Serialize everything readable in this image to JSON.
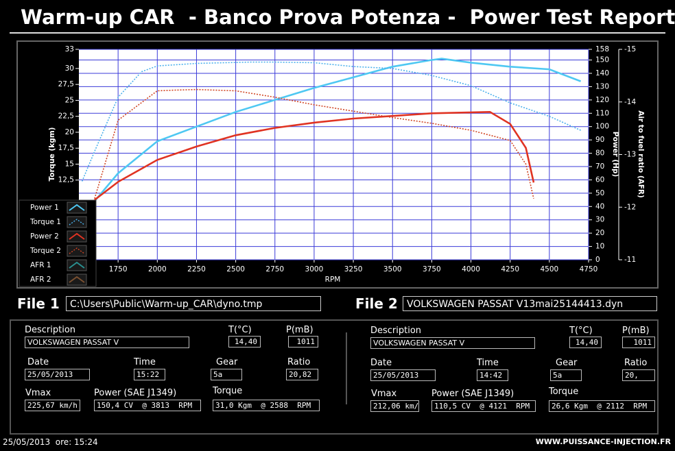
{
  "header": {
    "title": "Warm-up CAR  - Banco Prova Potenza -  Power Test Report"
  },
  "chart_data": {
    "type": "line",
    "xlabel": "RPM",
    "ylabel": "Torque (kgm)",
    "y2label": "Power (Hp)",
    "y3label": "Air to fuel ratio (AFR)",
    "xlim": [
      1500,
      4750
    ],
    "xticks": [
      1750,
      2000,
      2250,
      2500,
      2750,
      3000,
      3250,
      3500,
      3750,
      4000,
      4250,
      4500,
      4750
    ],
    "ylim": [
      0,
      33
    ],
    "yticks": [
      {
        "value": 12.5,
        "label": "12,5"
      },
      15,
      {
        "value": 17.5,
        "label": "17,5"
      },
      20,
      {
        "value": 22.5,
        "label": "22,5"
      },
      25,
      {
        "value": 27.5,
        "label": "27,5"
      },
      30,
      33
    ],
    "y2lim": [
      0,
      158
    ],
    "y2ticks": [
      0,
      10,
      20,
      30,
      40,
      50,
      60,
      70,
      80,
      90,
      100,
      110,
      120,
      130,
      140,
      150,
      158
    ],
    "y3lim": [
      -11,
      -15
    ],
    "y3ticks": [
      -15,
      -14,
      -13,
      -12,
      -11
    ],
    "grid": true,
    "series": [
      {
        "name": "Power 1",
        "color": "#4ec8f2",
        "axis": "y2",
        "style": "solid",
        "x": [
          1600,
          1750,
          2000,
          2250,
          2500,
          2750,
          3000,
          3250,
          3500,
          3750,
          3813,
          4000,
          4250,
          4500,
          4700
        ],
        "values": [
          44,
          65,
          89,
          100,
          111,
          120,
          129,
          137,
          145,
          150,
          151,
          148,
          145,
          143,
          134
        ]
      },
      {
        "name": "Torque 1",
        "color": "#4ab0ec",
        "axis": "y",
        "style": "dotted",
        "x": [
          1520,
          1600,
          1750,
          1900,
          2000,
          2250,
          2588,
          2750,
          3000,
          3250,
          3500,
          3750,
          4000,
          4250,
          4500,
          4700
        ],
        "values": [
          12.3,
          17,
          25.5,
          29.5,
          30.4,
          30.8,
          31.0,
          31.0,
          30.9,
          30.3,
          30,
          28.9,
          27.3,
          24.6,
          22.5,
          20.3
        ]
      },
      {
        "name": "Power 2",
        "color": "#e03322",
        "axis": "y2",
        "style": "solid",
        "x": [
          1600,
          1750,
          2000,
          2250,
          2500,
          2750,
          3000,
          3250,
          3500,
          3750,
          4121,
          4250,
          4350,
          4400
        ],
        "values": [
          45,
          58.5,
          75,
          85,
          93.5,
          99,
          103,
          106,
          108,
          110,
          111,
          102,
          84,
          58
        ]
      },
      {
        "name": "Torque 2",
        "color": "#d04422",
        "axis": "y",
        "style": "dotted",
        "x": [
          1600,
          1750,
          2000,
          2112,
          2250,
          2500,
          2750,
          3000,
          3250,
          3500,
          3750,
          4000,
          4250,
          4350,
          4400
        ],
        "values": [
          9.6,
          21.9,
          26.5,
          26.6,
          26.7,
          26.5,
          25.5,
          24.3,
          23.3,
          22.3,
          21.4,
          20.3,
          18.7,
          15,
          9.6
        ]
      },
      {
        "name": "AFR 1",
        "color": "#2a9090",
        "axis": "y3",
        "style": "solid",
        "x": [],
        "values": []
      },
      {
        "name": "AFR 2",
        "color": "#7a5030",
        "axis": "y3",
        "style": "solid",
        "x": [],
        "values": []
      }
    ]
  },
  "file1": {
    "label": "File 1",
    "path": "C:\\Users\\Public\\Warm-up_CAR\\dyno.tmp"
  },
  "file2": {
    "label": "File 2",
    "path": "VOLKSWAGEN PASSAT V13mai25144413.dyn"
  },
  "panel1": {
    "description": {
      "label": "Description",
      "value": "VOLKSWAGEN PASSAT V"
    },
    "temperature": {
      "label": "T(°C)",
      "value": "14,40"
    },
    "pressure": {
      "label": "P(mB)",
      "value": "1011"
    },
    "date": {
      "label": "Date",
      "value": "25/05/2013"
    },
    "time": {
      "label": "Time",
      "value": "15:22"
    },
    "gear": {
      "label": "Gear",
      "value": "5a"
    },
    "ratio": {
      "label": "Ratio",
      "value": "20,82"
    },
    "vmax": {
      "label": "Vmax",
      "value": "225,67 km/h"
    },
    "power": {
      "label": "Power (SAE J1349)",
      "value": "150,4 CV  @ 3813  RPM"
    },
    "torque": {
      "label": "Torque",
      "value": "31,0 Kgm  @ 2588  RPM"
    }
  },
  "panel2": {
    "description": {
      "label": "Description",
      "value": "VOLKSWAGEN PASSAT V"
    },
    "temperature": {
      "label": "T(°C)",
      "value": "14,40"
    },
    "pressure": {
      "label": "P(mB)",
      "value": "1011"
    },
    "date": {
      "label": "Date",
      "value": "25/05/2013"
    },
    "time": {
      "label": "Time",
      "value": "14:42"
    },
    "gear": {
      "label": "Gear",
      "value": "5a"
    },
    "ratio": {
      "label": "Ratio",
      "value": "20,"
    },
    "vmax": {
      "label": "Vmax",
      "value": "212,06 km/"
    },
    "power": {
      "label": "Power (SAE J1349)",
      "value": "110,5 CV  @ 4121  RPM"
    },
    "torque": {
      "label": "Torque",
      "value": "26,6 Kgm  @ 2112  RPM"
    }
  },
  "footer": {
    "datetime": "25/05/2013  ore: 15:24",
    "website": "WWW.PUISSANCE-INJECTION.FR"
  }
}
